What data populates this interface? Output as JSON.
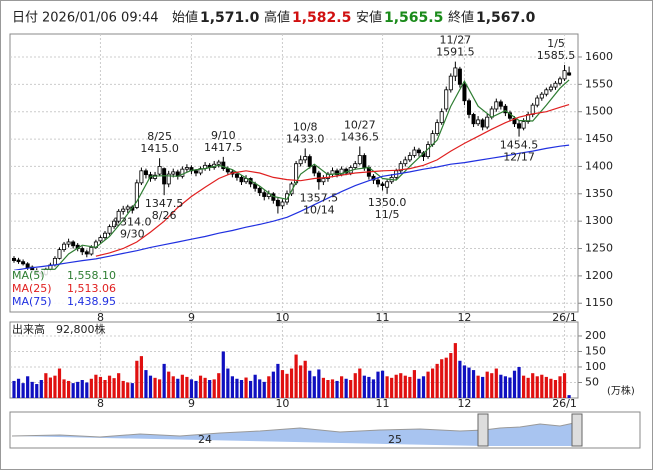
{
  "header": {
    "date_label": "日付",
    "datetime": "2026/01/06 09:44",
    "open_label": "始値",
    "open": "1,571.0",
    "high_label": "高値",
    "high": "1,582.5",
    "low_label": "安値",
    "low": "1,565.5",
    "close_label": "終値",
    "close": "1,567.0"
  },
  "chart_data": {
    "type": "candlestick",
    "categories": [
      null,
      null,
      null,
      null,
      null,
      null,
      null,
      null,
      null,
      null,
      null,
      null,
      null,
      null,
      null,
      null,
      null,
      null,
      null,
      "8",
      null,
      null,
      null,
      null,
      null,
      null,
      null,
      null,
      null,
      null,
      null,
      null,
      null,
      null,
      null,
      null,
      null,
      null,
      null,
      "9",
      null,
      null,
      null,
      null,
      null,
      null,
      null,
      null,
      null,
      null,
      null,
      null,
      null,
      null,
      null,
      null,
      null,
      null,
      null,
      "10",
      null,
      null,
      null,
      null,
      null,
      null,
      null,
      null,
      null,
      null,
      null,
      null,
      null,
      null,
      null,
      null,
      null,
      null,
      null,
      null,
      null,
      "11",
      null,
      null,
      null,
      null,
      null,
      null,
      null,
      null,
      null,
      null,
      null,
      null,
      null,
      null,
      null,
      null,
      null,
      "12",
      null,
      null,
      null,
      null,
      null,
      null,
      null,
      null,
      null,
      null,
      null,
      null,
      null,
      null,
      null,
      null,
      null,
      null,
      null,
      null,
      null,
      "26/1",
      null
    ],
    "open": [
      1232,
      1229,
      1226,
      1222,
      1216,
      1210,
      1206,
      1203,
      1212,
      1220,
      1232,
      1248,
      1258,
      1262,
      1256,
      1250,
      1244,
      1240,
      1252,
      1264,
      1270,
      1278,
      1290,
      1300,
      1318,
      1322,
      1326,
      1325,
      1370,
      1392,
      1385,
      1378,
      1386,
      1396,
      1368,
      1386,
      1390,
      1382,
      1395,
      1398,
      1392,
      1388,
      1396,
      1402,
      1398,
      1404,
      1408,
      1396,
      1390,
      1386,
      1380,
      1372,
      1378,
      1368,
      1360,
      1352,
      1345,
      1350,
      1338,
      1328,
      1335,
      1350,
      1370,
      1405,
      1412,
      1418,
      1400,
      1388,
      1372,
      1378,
      1386,
      1392,
      1385,
      1395,
      1388,
      1398,
      1405,
      1420,
      1398,
      1382,
      1375,
      1368,
      1362,
      1372,
      1380,
      1392,
      1405,
      1412,
      1420,
      1430,
      1425,
      1418,
      1440,
      1460,
      1480,
      1505,
      1540,
      1565,
      1578,
      1550,
      1520,
      1495,
      1478,
      1485,
      1472,
      1490,
      1505,
      1518,
      1510,
      1498,
      1488,
      1478,
      1470,
      1482,
      1495,
      1512,
      1525,
      1532,
      1540,
      1545,
      1552,
      1560,
      1571
    ],
    "high": [
      1236,
      1233,
      1230,
      1225,
      1219,
      1214,
      1210,
      1215,
      1224,
      1236,
      1252,
      1262,
      1268,
      1265,
      1260,
      1254,
      1248,
      1256,
      1266,
      1274,
      1282,
      1294,
      1304,
      1322,
      1328,
      1330,
      1329,
      1376,
      1398,
      1396,
      1390,
      1390,
      1415,
      1398,
      1392,
      1396,
      1394,
      1400,
      1404,
      1402,
      1395,
      1400,
      1408,
      1406,
      1410,
      1412,
      1417.5,
      1400,
      1394,
      1390,
      1384,
      1384,
      1380,
      1372,
      1364,
      1356,
      1356,
      1353,
      1342,
      1340,
      1356,
      1372,
      1410,
      1420,
      1433,
      1422,
      1404,
      1392,
      1384,
      1390,
      1398,
      1396,
      1400,
      1398,
      1402,
      1410,
      1436.5,
      1424,
      1402,
      1386,
      1380,
      1372,
      1376,
      1386,
      1396,
      1410,
      1418,
      1426,
      1436,
      1434,
      1428,
      1446,
      1466,
      1486,
      1506,
      1546,
      1570,
      1591.5,
      1582,
      1554,
      1524,
      1498,
      1492,
      1488,
      1496,
      1510,
      1524,
      1522,
      1514,
      1502,
      1492,
      1484,
      1488,
      1500,
      1516,
      1530,
      1536,
      1544,
      1550,
      1556,
      1564,
      1585.5,
      1582.5
    ],
    "low": [
      1224,
      1222,
      1219,
      1211,
      1206,
      1202,
      1198,
      1200,
      1208,
      1217,
      1230,
      1244,
      1252,
      1250,
      1245,
      1238,
      1234,
      1237,
      1249,
      1260,
      1266,
      1274,
      1286,
      1296,
      1312,
      1315,
      1314,
      1322,
      1366,
      1378,
      1372,
      1374,
      1382,
      1347.5,
      1362,
      1380,
      1376,
      1378,
      1390,
      1386,
      1382,
      1384,
      1392,
      1392,
      1394,
      1398,
      1392,
      1385,
      1380,
      1374,
      1366,
      1368,
      1362,
      1354,
      1346,
      1338,
      1340,
      1332,
      1314,
      1322,
      1330,
      1346,
      1366,
      1400,
      1406,
      1396,
      1382,
      1357.5,
      1366,
      1372,
      1380,
      1380,
      1382,
      1384,
      1384,
      1394,
      1402,
      1392,
      1376,
      1368,
      1362,
      1356,
      1350,
      1368,
      1376,
      1388,
      1400,
      1408,
      1416,
      1418,
      1410,
      1414,
      1436,
      1456,
      1476,
      1500,
      1535,
      1556,
      1544,
      1512,
      1488,
      1472,
      1474,
      1466,
      1468,
      1486,
      1500,
      1504,
      1492,
      1482,
      1472,
      1454.5,
      1466,
      1478,
      1490,
      1508,
      1520,
      1528,
      1536,
      1540,
      1548,
      1556,
      1565.5
    ],
    "close": [
      1228,
      1226,
      1222,
      1215,
      1210,
      1206,
      1204,
      1212,
      1220,
      1232,
      1248,
      1258,
      1262,
      1255,
      1250,
      1244,
      1240,
      1252,
      1262,
      1270,
      1278,
      1290,
      1300,
      1318,
      1322,
      1326,
      1320,
      1370,
      1392,
      1385,
      1378,
      1384,
      1400,
      1368,
      1386,
      1390,
      1382,
      1395,
      1398,
      1392,
      1388,
      1396,
      1402,
      1398,
      1404,
      1408,
      1396,
      1390,
      1386,
      1380,
      1372,
      1378,
      1368,
      1360,
      1352,
      1345,
      1350,
      1338,
      1328,
      1335,
      1350,
      1368,
      1405,
      1412,
      1418,
      1400,
      1388,
      1372,
      1378,
      1386,
      1392,
      1385,
      1395,
      1388,
      1398,
      1405,
      1420,
      1398,
      1382,
      1375,
      1368,
      1365,
      1372,
      1380,
      1392,
      1405,
      1412,
      1420,
      1430,
      1425,
      1418,
      1440,
      1460,
      1480,
      1500,
      1540,
      1565,
      1580,
      1550,
      1520,
      1495,
      1478,
      1485,
      1472,
      1490,
      1505,
      1518,
      1510,
      1498,
      1488,
      1478,
      1470,
      1482,
      1495,
      1512,
      1525,
      1532,
      1540,
      1545,
      1552,
      1560,
      1575,
      1567
    ],
    "up_fill": "#ffffff",
    "down_fill": "#000000",
    "candle_stroke": "#000000",
    "ylim": [
      1134,
      1642
    ],
    "yticks": [
      1150,
      1200,
      1250,
      1300,
      1350,
      1400,
      1450,
      1500,
      1550,
      1600
    ],
    "grid": true,
    "ma_x": [
      0,
      3,
      6,
      9,
      12,
      15,
      18,
      21,
      24,
      27,
      30,
      33,
      36,
      39,
      42,
      45,
      48,
      51,
      54,
      57,
      60,
      63,
      66,
      69,
      72,
      75,
      78,
      81,
      84,
      87,
      90,
      93,
      96,
      99,
      102,
      105,
      108,
      111,
      114,
      117,
      120,
      122
    ],
    "ma": [
      {
        "name": "MA(5)",
        "color": "#2e7d32",
        "legend_label": "1,558.10",
        "values": [
          null,
          null,
          1212,
          1212,
          1240,
          1256,
          1252,
          1272,
          1302,
          1336,
          1382,
          1383,
          1382,
          1393,
          1396,
          1402,
          1394,
          1379,
          1364,
          1345,
          1340,
          1386,
          1404,
          1385,
          1387,
          1395,
          1398,
          1378,
          1375,
          1400,
          1424,
          1448,
          1510,
          1556,
          1510,
          1490,
          1502,
          1484,
          1483,
          1512,
          1543,
          1558.1
        ]
      },
      {
        "name": "MA(25)",
        "color": "#e02020",
        "legend_label": "1,513.06",
        "values": [
          null,
          null,
          null,
          null,
          null,
          null,
          1236,
          1242,
          1250,
          1262,
          1280,
          1300,
          1325,
          1345,
          1362,
          1378,
          1388,
          1392,
          1388,
          1380,
          1376,
          1374,
          1378,
          1380,
          1384,
          1388,
          1390,
          1392,
          1393,
          1396,
          1402,
          1412,
          1428,
          1442,
          1455,
          1468,
          1480,
          1490,
          1496,
          1500,
          1508,
          1513.06
        ]
      },
      {
        "name": "MA(75)",
        "color": "#2030e0",
        "legend_label": "1,438.95",
        "values": [
          1210,
          1214,
          1217,
          1220,
          1224,
          1228,
          1231,
          1236,
          1241,
          1246,
          1252,
          1257,
          1262,
          1267,
          1272,
          1278,
          1283,
          1289,
          1294,
          1300,
          1307,
          1318,
          1330,
          1342,
          1354,
          1365,
          1374,
          1382,
          1386,
          1390,
          1395,
          1399,
          1404,
          1407,
          1411,
          1415,
          1419,
          1424,
          1428,
          1433,
          1437,
          1438.95
        ]
      }
    ],
    "annotations": [
      {
        "date": "8/25",
        "label": "1415.0",
        "value": 1415,
        "kind": "high"
      },
      {
        "date": "8/26",
        "label": "1347.5",
        "value": 1347.5,
        "kind": "low"
      },
      {
        "date": "9/10",
        "label": "1417.5",
        "value": 1417.5,
        "kind": "high"
      },
      {
        "date": "9/30",
        "label": "1314.0",
        "value": 1314,
        "kind": "low"
      },
      {
        "date": "10/8",
        "label": "1433.0",
        "value": 1433,
        "kind": "high"
      },
      {
        "date": "10/14",
        "label": "1357.5",
        "value": 1357.5,
        "kind": "low"
      },
      {
        "date": "10/27",
        "label": "1436.5",
        "value": 1436.5,
        "kind": "high"
      },
      {
        "date": "11/5",
        "label": "1350.0",
        "value": 1350,
        "kind": "low"
      },
      {
        "date": "11/27",
        "label": "1591.5",
        "value": 1591.5,
        "kind": "high"
      },
      {
        "date": "12/17",
        "label": "1454.5",
        "value": 1454.5,
        "kind": "low"
      },
      {
        "date": "1/5",
        "label": "1585.5",
        "value": 1585.5,
        "kind": "high"
      }
    ],
    "volume": {
      "name": "出来高",
      "label": "92,800株",
      "unit": "(万株)",
      "up_color": "#e01010",
      "down_color": "#1010c0",
      "ylim": [
        0,
        245
      ],
      "yticks": [
        50,
        100,
        150,
        200
      ],
      "values": [
        55,
        62,
        48,
        70,
        52,
        45,
        58,
        80,
        66,
        72,
        95,
        60,
        55,
        48,
        52,
        58,
        50,
        62,
        75,
        68,
        58,
        72,
        64,
        80,
        55,
        50,
        48,
        120,
        135,
        90,
        72,
        65,
        60,
        110,
        85,
        70,
        62,
        75,
        68,
        60,
        55,
        72,
        65,
        58,
        60,
        80,
        150,
        95,
        70,
        62,
        58,
        66,
        55,
        75,
        60,
        52,
        70,
        85,
        110,
        90,
        78,
        95,
        140,
        105,
        120,
        88,
        70,
        92,
        65,
        58,
        60,
        55,
        70,
        62,
        58,
        80,
        95,
        72,
        68,
        60,
        85,
        88,
        70,
        65,
        75,
        80,
        72,
        68,
        90,
        62,
        70,
        85,
        95,
        110,
        125,
        130,
        145,
        177,
        120,
        105,
        98,
        90,
        72,
        68,
        85,
        80,
        95,
        75,
        70,
        66,
        88,
        100,
        72,
        65,
        80,
        70,
        75,
        68,
        62,
        58,
        70,
        80,
        9.28
      ]
    }
  },
  "navigator": {
    "labels": [
      "24",
      "25"
    ]
  }
}
